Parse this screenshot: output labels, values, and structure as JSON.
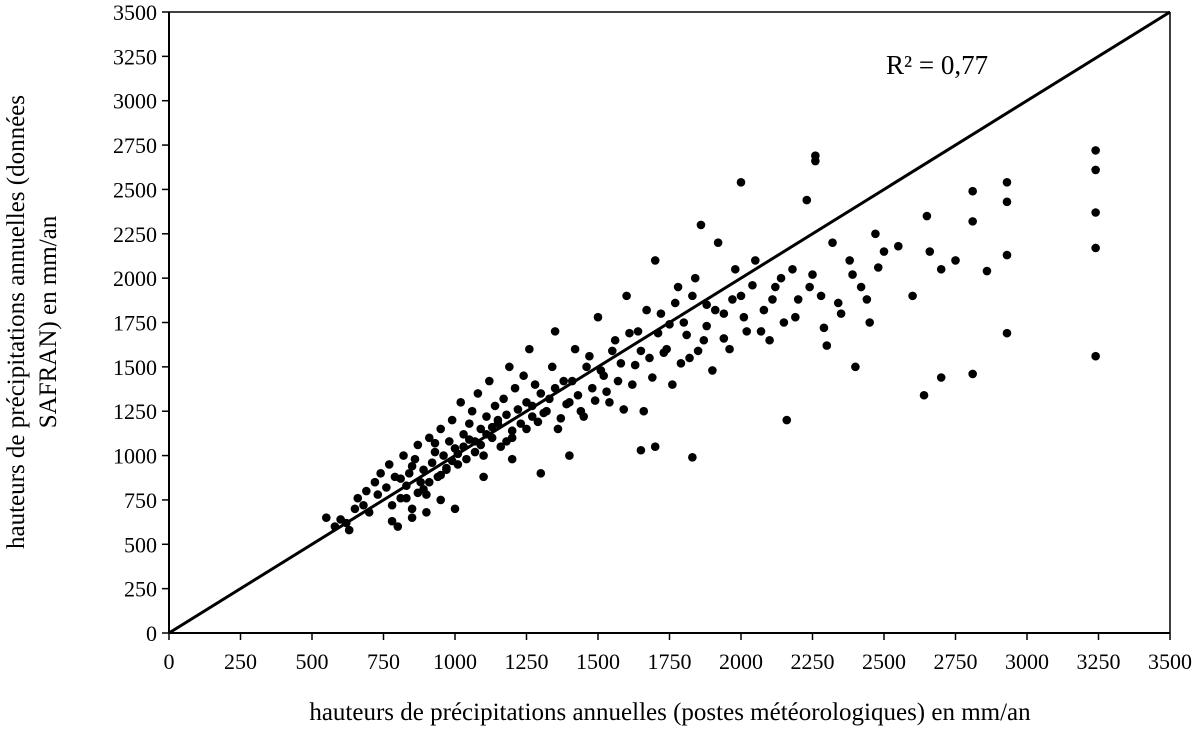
{
  "chart_data": {
    "type": "scatter",
    "title": "",
    "xlabel": "hauteurs de précipitations annuelles (postes météorologiques) en mm/an",
    "ylabel_line1": "hauteurs de précipitations annuelles (données",
    "ylabel_line2": "SAFRAN) en mm/an",
    "xlim": [
      0,
      3500
    ],
    "ylim": [
      0,
      3500
    ],
    "x_ticks": [
      "0",
      "250",
      "500",
      "750",
      "1000",
      "1250",
      "1500",
      "1750",
      "2000",
      "2250",
      "2500",
      "2750",
      "3000",
      "3250",
      "3500"
    ],
    "y_ticks": [
      "0",
      "250",
      "500",
      "750",
      "1000",
      "1250",
      "1500",
      "1750",
      "2000",
      "2250",
      "2500",
      "2750",
      "3000",
      "3250",
      "3500"
    ],
    "grid": false,
    "reference_line": {
      "from": [
        0,
        0
      ],
      "to": [
        3500,
        3500
      ]
    },
    "annotation": "R² = 0,77",
    "marker_color": "#000000",
    "series": [
      {
        "points": [
          [
            550,
            650
          ],
          [
            580,
            600
          ],
          [
            600,
            640
          ],
          [
            620,
            620
          ],
          [
            630,
            580
          ],
          [
            650,
            700
          ],
          [
            660,
            760
          ],
          [
            680,
            720
          ],
          [
            690,
            800
          ],
          [
            700,
            680
          ],
          [
            720,
            850
          ],
          [
            730,
            780
          ],
          [
            740,
            900
          ],
          [
            760,
            820
          ],
          [
            770,
            950
          ],
          [
            780,
            720
          ],
          [
            790,
            880
          ],
          [
            800,
            600
          ],
          [
            810,
            760
          ],
          [
            820,
            1000
          ],
          [
            830,
            830
          ],
          [
            840,
            900
          ],
          [
            850,
            700
          ],
          [
            860,
            980
          ],
          [
            870,
            1060
          ],
          [
            880,
            850
          ],
          [
            890,
            920
          ],
          [
            900,
            780
          ],
          [
            910,
            1100
          ],
          [
            920,
            960
          ],
          [
            930,
            1020
          ],
          [
            940,
            880
          ],
          [
            950,
            1150
          ],
          [
            960,
            1000
          ],
          [
            970,
            920
          ],
          [
            980,
            1080
          ],
          [
            990,
            1200
          ],
          [
            1000,
            1040
          ],
          [
            1010,
            950
          ],
          [
            1020,
            1300
          ],
          [
            1030,
            1120
          ],
          [
            1040,
            980
          ],
          [
            1050,
            1180
          ],
          [
            1060,
            1250
          ],
          [
            1070,
            1080
          ],
          [
            1080,
            1350
          ],
          [
            1090,
            1150
          ],
          [
            1100,
            1000
          ],
          [
            1110,
            1220
          ],
          [
            1120,
            1420
          ],
          [
            1130,
            1100
          ],
          [
            1140,
            1280
          ],
          [
            1150,
            1180
          ],
          [
            1160,
            1050
          ],
          [
            1170,
            1320
          ],
          [
            1180,
            1230
          ],
          [
            1190,
            1500
          ],
          [
            1200,
            1140
          ],
          [
            1210,
            1380
          ],
          [
            1220,
            1260
          ],
          [
            1230,
            1180
          ],
          [
            1240,
            1450
          ],
          [
            1250,
            1300
          ],
          [
            1260,
            1600
          ],
          [
            1270,
            1220
          ],
          [
            1280,
            1400
          ],
          [
            1300,
            1350
          ],
          [
            1320,
            1250
          ],
          [
            1340,
            1500
          ],
          [
            1350,
            1700
          ],
          [
            1360,
            1150
          ],
          [
            1380,
            1420
          ],
          [
            1400,
            1300
          ],
          [
            1420,
            1600
          ],
          [
            1440,
            1250
          ],
          [
            1460,
            1500
          ],
          [
            1480,
            1380
          ],
          [
            1500,
            1780
          ],
          [
            1520,
            1450
          ],
          [
            1540,
            1300
          ],
          [
            1560,
            1650
          ],
          [
            1580,
            1520
          ],
          [
            1600,
            1900
          ],
          [
            1620,
            1400
          ],
          [
            1640,
            1700
          ],
          [
            1660,
            1250
          ],
          [
            1680,
            1550
          ],
          [
            1700,
            2100
          ],
          [
            1720,
            1800
          ],
          [
            1740,
            1600
          ],
          [
            1760,
            1400
          ],
          [
            1780,
            1950
          ],
          [
            1800,
            1750
          ],
          [
            1820,
            1550
          ],
          [
            1840,
            2000
          ],
          [
            1860,
            2300
          ],
          [
            1870,
            1650
          ],
          [
            1880,
            1850
          ],
          [
            1900,
            1480
          ],
          [
            1920,
            2200
          ],
          [
            1940,
            1800
          ],
          [
            1960,
            1600
          ],
          [
            1980,
            2050
          ],
          [
            2000,
            2540
          ],
          [
            2000,
            1900
          ],
          [
            2020,
            1700
          ],
          [
            2050,
            2100
          ],
          [
            2080,
            1820
          ],
          [
            2100,
            1650
          ],
          [
            2120,
            1950
          ],
          [
            2150,
            1750
          ],
          [
            2160,
            1200
          ],
          [
            2180,
            2050
          ],
          [
            2200,
            1880
          ],
          [
            2230,
            2440
          ],
          [
            2250,
            2020
          ],
          [
            2260,
            2690
          ],
          [
            2260,
            2660
          ],
          [
            2280,
            1900
          ],
          [
            2300,
            1620
          ],
          [
            2320,
            2200
          ],
          [
            2350,
            1800
          ],
          [
            2380,
            2100
          ],
          [
            2400,
            1500
          ],
          [
            2420,
            1950
          ],
          [
            2450,
            1750
          ],
          [
            2470,
            2250
          ],
          [
            2500,
            2150
          ],
          [
            2550,
            2180
          ],
          [
            2600,
            1900
          ],
          [
            2640,
            1340
          ],
          [
            2650,
            2350
          ],
          [
            2660,
            2150
          ],
          [
            2700,
            2050
          ],
          [
            2700,
            1440
          ],
          [
            2750,
            2100
          ],
          [
            2810,
            2490
          ],
          [
            2810,
            2320
          ],
          [
            2810,
            1460
          ],
          [
            2860,
            2040
          ],
          [
            2930,
            2540
          ],
          [
            2930,
            2430
          ],
          [
            2930,
            2130
          ],
          [
            2930,
            1690
          ],
          [
            3240,
            2720
          ],
          [
            3240,
            2610
          ],
          [
            3240,
            2370
          ],
          [
            3240,
            2170
          ],
          [
            3240,
            1560
          ],
          [
            1830,
            990
          ],
          [
            1650,
            1030
          ],
          [
            1700,
            1050
          ],
          [
            1400,
            1000
          ],
          [
            1300,
            900
          ],
          [
            1200,
            980
          ],
          [
            1100,
            880
          ],
          [
            1000,
            700
          ],
          [
            950,
            750
          ],
          [
            900,
            680
          ],
          [
            850,
            650
          ],
          [
            780,
            630
          ],
          [
            1200,
            1100
          ],
          [
            1180,
            1080
          ],
          [
            1150,
            1200
          ],
          [
            1130,
            1160
          ],
          [
            1110,
            1120
          ],
          [
            1090,
            1060
          ],
          [
            1070,
            1020
          ],
          [
            1050,
            1090
          ],
          [
            1030,
            1050
          ],
          [
            1010,
            1010
          ],
          [
            990,
            970
          ],
          [
            970,
            930
          ],
          [
            950,
            890
          ],
          [
            930,
            1070
          ],
          [
            910,
            850
          ],
          [
            890,
            810
          ],
          [
            870,
            790
          ],
          [
            850,
            940
          ],
          [
            830,
            760
          ],
          [
            810,
            870
          ],
          [
            1250,
            1150
          ],
          [
            1270,
            1280
          ],
          [
            1290,
            1190
          ],
          [
            1310,
            1240
          ],
          [
            1330,
            1320
          ],
          [
            1350,
            1380
          ],
          [
            1370,
            1210
          ],
          [
            1390,
            1290
          ],
          [
            1410,
            1420
          ],
          [
            1430,
            1340
          ],
          [
            1450,
            1220
          ],
          [
            1470,
            1560
          ],
          [
            1490,
            1310
          ],
          [
            1510,
            1480
          ],
          [
            1530,
            1360
          ],
          [
            1550,
            1590
          ],
          [
            1570,
            1420
          ],
          [
            1590,
            1260
          ],
          [
            1610,
            1690
          ],
          [
            1630,
            1510
          ],
          [
            1650,
            1590
          ],
          [
            1670,
            1820
          ],
          [
            1690,
            1440
          ],
          [
            1710,
            1690
          ],
          [
            1730,
            1580
          ],
          [
            1750,
            1740
          ],
          [
            1770,
            1860
          ],
          [
            1790,
            1520
          ],
          [
            1810,
            1680
          ],
          [
            1830,
            1900
          ],
          [
            1850,
            1590
          ],
          [
            1880,
            1730
          ],
          [
            1910,
            1820
          ],
          [
            1940,
            1660
          ],
          [
            1970,
            1880
          ],
          [
            2010,
            1780
          ],
          [
            2040,
            1960
          ],
          [
            2070,
            1700
          ],
          [
            2110,
            1880
          ],
          [
            2140,
            2000
          ],
          [
            2190,
            1780
          ],
          [
            2240,
            1950
          ],
          [
            2290,
            1720
          ],
          [
            2340,
            1860
          ],
          [
            2390,
            2020
          ],
          [
            2440,
            1880
          ],
          [
            2480,
            2060
          ]
        ]
      }
    ]
  }
}
